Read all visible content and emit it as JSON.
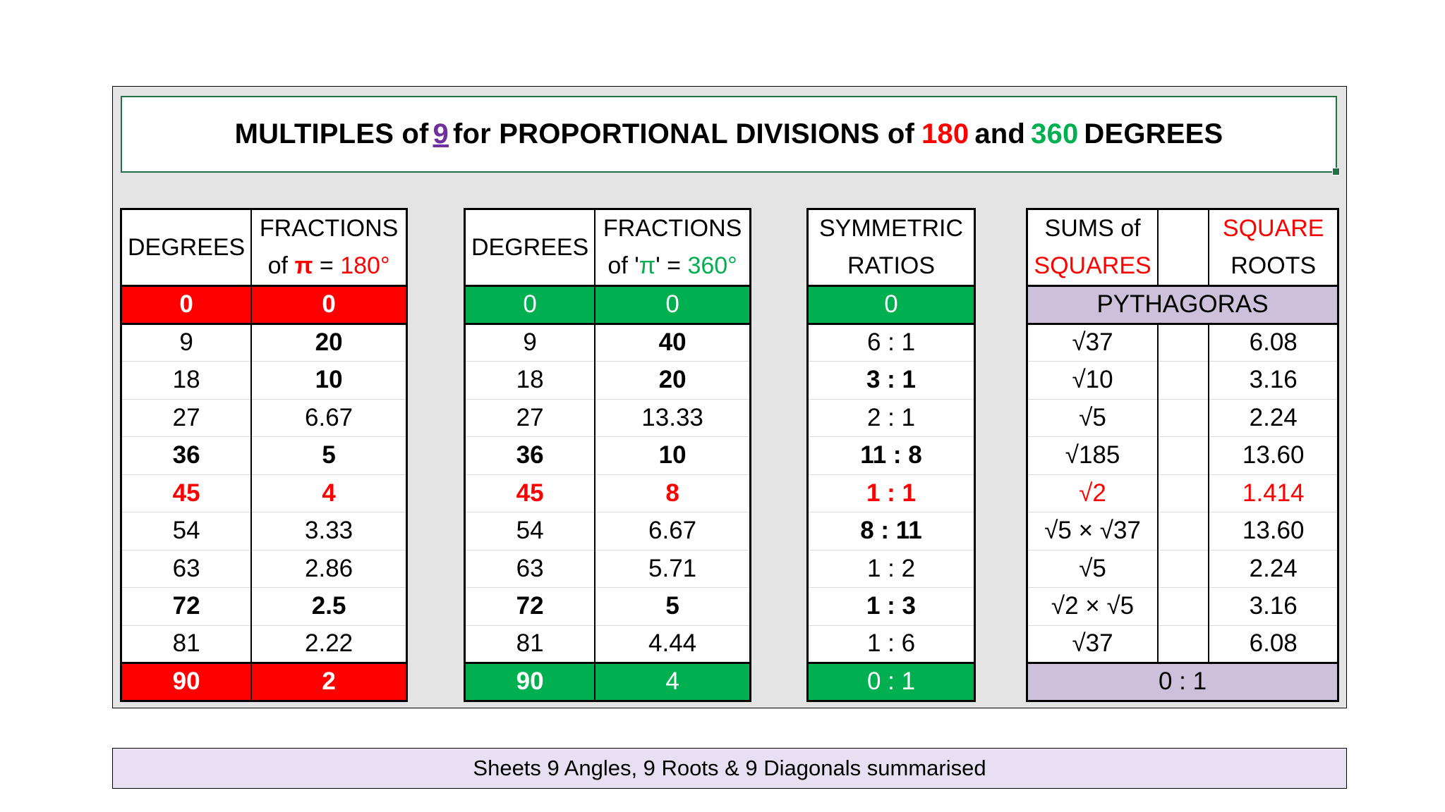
{
  "title": {
    "part1": "MULTIPLES of ",
    "nine": "9",
    "part2": " for PROPORTIONAL DIVISIONS of ",
    "n180": "180",
    "part3": " and ",
    "n360": "360",
    "part4": " DEGREES"
  },
  "table1": {
    "h1": "DEGREES",
    "h2a": "FRACTIONS",
    "h2b_pre": "of ",
    "h2b_pi": "π",
    "h2b_mid": " = ",
    "h2b_val": "180°",
    "top": [
      "0",
      "0"
    ],
    "rows": [
      {
        "deg": "9",
        "frac": "20"
      },
      {
        "deg": "18",
        "frac": "10"
      },
      {
        "deg": "27",
        "frac": "6.67"
      },
      {
        "deg": "36",
        "frac": "5"
      },
      {
        "deg": "45",
        "frac": "4"
      },
      {
        "deg": "54",
        "frac": "3.33"
      },
      {
        "deg": "63",
        "frac": "2.86"
      },
      {
        "deg": "72",
        "frac": "2.5"
      },
      {
        "deg": "81",
        "frac": "2.22"
      }
    ],
    "bottom": [
      "90",
      "2"
    ]
  },
  "table2": {
    "h1": "DEGREES",
    "h2a": "FRACTIONS",
    "h2b_pre": "of '",
    "h2b_pi": "π",
    "h2b_mid": "' = ",
    "h2b_val": "360°",
    "top": [
      "0",
      "0"
    ],
    "rows": [
      {
        "deg": "9",
        "frac": "40"
      },
      {
        "deg": "18",
        "frac": "20"
      },
      {
        "deg": "27",
        "frac": "13.33"
      },
      {
        "deg": "36",
        "frac": "10"
      },
      {
        "deg": "45",
        "frac": "8"
      },
      {
        "deg": "54",
        "frac": "6.67"
      },
      {
        "deg": "63",
        "frac": "5.71"
      },
      {
        "deg": "72",
        "frac": "5"
      },
      {
        "deg": "81",
        "frac": "4.44"
      }
    ],
    "bottom": [
      "90",
      "4"
    ]
  },
  "table3": {
    "h1a": "SYMMETRIC",
    "h1b": "RATIOS",
    "top": "0",
    "rows": [
      "6 : 1",
      "3 : 1",
      "2 : 1",
      "11 : 8",
      "1 : 1",
      "8 : 11",
      "1 : 2",
      "1 : 3",
      "1 : 6"
    ],
    "bottom": "0 : 1"
  },
  "table4": {
    "h1a": "SUMS of",
    "h1b": "SQUARES",
    "h2a": "SQUARE",
    "h2b": "ROOTS",
    "band": "PYTHAGORAS",
    "rows": [
      {
        "sum": "√37",
        "root": "6.08"
      },
      {
        "sum": "√10",
        "root": "3.16"
      },
      {
        "sum": "√5",
        "root": "2.24"
      },
      {
        "sum": "√185",
        "root": "13.60"
      },
      {
        "sum": "√2",
        "root": "1.414"
      },
      {
        "sum": "√5 × √37",
        "root": "13.60"
      },
      {
        "sum": "√5",
        "root": "2.24"
      },
      {
        "sum": "√2 × √5",
        "root": "3.16"
      },
      {
        "sum": "√37",
        "root": "6.08"
      }
    ],
    "bottom": "0 : 1"
  },
  "footer": "Sheets 9 Angles, 9 Roots & 9 Diagonals summarised",
  "colors": {
    "red": "#ff0000",
    "green": "#00b050",
    "purple": "#7030a0",
    "lavender": "#ccc0da",
    "footer_bg": "#e8e0f2"
  }
}
